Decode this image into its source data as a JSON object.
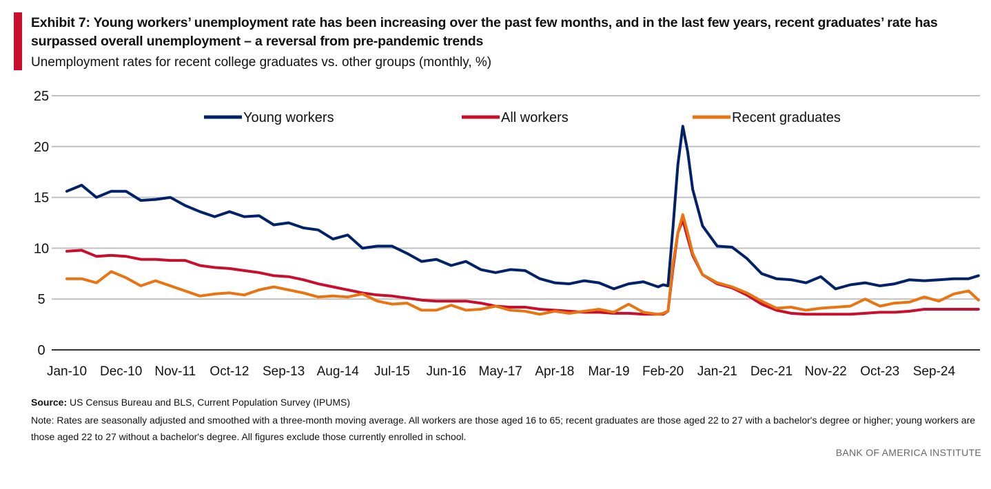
{
  "title": "Exhibit 7: Young workers’ unemployment rate has been increasing over the past few months, and in the last few years, recent graduates’ rate has surpassed overall unemployment – a reversal from pre-pandemic trends",
  "subtitle": "Unemployment rates for recent college graduates vs. other groups (monthly, %)",
  "source_label": "Source:",
  "source_text": " US Census Bureau and BLS, Current Population Survey (IPUMS)",
  "note": "Note: Rates are seasonally adjusted and smoothed with a three-month moving average. All workers are those aged 16 to 65; recent graduates are those aged 22 to 27 with a bachelor's degree or higher; young workers are those aged 22 to 27 without a bachelor's degree. All figures exclude those currently enrolled in school.",
  "brand": "BANK OF AMERICA INSTITUTE",
  "chart_data": {
    "type": "line",
    "ylim": [
      0,
      25
    ],
    "yticks": [
      0,
      5,
      10,
      15,
      20,
      25
    ],
    "grid": true,
    "legend": "top",
    "xticks": [
      "Jan-10",
      "Dec-10",
      "Nov-11",
      "Oct-12",
      "Sep-13",
      "Aug-14",
      "Jul-15",
      "Jun-16",
      "May-17",
      "Apr-18",
      "Mar-19",
      "Feb-20",
      "Jan-21",
      "Dec-21",
      "Nov-22",
      "Oct-23",
      "Sep-24"
    ],
    "x": [
      "Jan-10",
      "Apr-10",
      "Jul-10",
      "Oct-10",
      "Jan-11",
      "Apr-11",
      "Jul-11",
      "Oct-11",
      "Jan-12",
      "Apr-12",
      "Jul-12",
      "Oct-12",
      "Jan-13",
      "Apr-13",
      "Jul-13",
      "Oct-13",
      "Jan-14",
      "Apr-14",
      "Jul-14",
      "Oct-14",
      "Jan-15",
      "Apr-15",
      "Jul-15",
      "Oct-15",
      "Jan-16",
      "Apr-16",
      "Jul-16",
      "Oct-16",
      "Jan-17",
      "Apr-17",
      "Jul-17",
      "Oct-17",
      "Jan-18",
      "Apr-18",
      "Jul-18",
      "Oct-18",
      "Jan-19",
      "Apr-19",
      "Jul-19",
      "Oct-19",
      "Jan-20",
      "Feb-20",
      "Mar-20",
      "Apr-20",
      "May-20",
      "Jun-20",
      "Jul-20",
      "Aug-20",
      "Oct-20",
      "Jan-21",
      "Apr-21",
      "Jul-21",
      "Oct-21",
      "Jan-22",
      "Apr-22",
      "Jul-22",
      "Oct-22",
      "Jan-23",
      "Apr-23",
      "Jul-23",
      "Oct-23",
      "Jan-24",
      "Apr-24",
      "Jul-24",
      "Oct-24",
      "Jan-25",
      "Apr-25",
      "Jun-25"
    ],
    "series": [
      {
        "name": "Young workers",
        "color": "#012169",
        "values": [
          15.6,
          16.2,
          15.0,
          15.6,
          15.6,
          14.7,
          14.8,
          15.0,
          14.2,
          13.6,
          13.1,
          13.6,
          13.1,
          13.2,
          12.3,
          12.5,
          12.0,
          11.8,
          10.9,
          11.3,
          10.0,
          10.2,
          10.2,
          9.5,
          8.7,
          8.9,
          8.3,
          8.7,
          7.9,
          7.6,
          7.9,
          7.8,
          7.0,
          6.6,
          6.5,
          6.8,
          6.6,
          6.0,
          6.5,
          6.7,
          6.2,
          6.4,
          6.3,
          12.0,
          18.2,
          22.0,
          19.5,
          15.8,
          12.2,
          10.2,
          10.1,
          9.0,
          7.5,
          7.0,
          6.9,
          6.6,
          7.2,
          6.0,
          6.4,
          6.6,
          6.3,
          6.5,
          6.9,
          6.8,
          6.9,
          7.0,
          7.0,
          7.3
        ]
      },
      {
        "name": "All workers",
        "color": "#c8102e",
        "values": [
          9.7,
          9.8,
          9.2,
          9.3,
          9.2,
          8.9,
          8.9,
          8.8,
          8.8,
          8.3,
          8.1,
          8.0,
          7.8,
          7.6,
          7.3,
          7.2,
          6.9,
          6.5,
          6.2,
          5.9,
          5.6,
          5.4,
          5.3,
          5.1,
          4.9,
          4.8,
          4.8,
          4.8,
          4.6,
          4.3,
          4.2,
          4.2,
          4.0,
          3.9,
          3.8,
          3.7,
          3.7,
          3.6,
          3.6,
          3.5,
          3.5,
          3.5,
          3.8,
          8.0,
          11.5,
          12.8,
          11.0,
          9.3,
          7.4,
          6.5,
          6.1,
          5.4,
          4.5,
          3.9,
          3.6,
          3.5,
          3.5,
          3.5,
          3.5,
          3.6,
          3.7,
          3.7,
          3.8,
          4.0,
          4.0,
          4.0,
          4.0,
          4.0
        ]
      },
      {
        "name": "Recent graduates",
        "color": "#e87511",
        "values": [
          7.0,
          7.0,
          6.6,
          7.7,
          7.1,
          6.3,
          6.8,
          6.3,
          5.8,
          5.3,
          5.5,
          5.6,
          5.4,
          5.9,
          6.2,
          5.9,
          5.6,
          5.2,
          5.3,
          5.2,
          5.5,
          4.8,
          4.5,
          4.6,
          3.9,
          3.9,
          4.4,
          3.9,
          4.0,
          4.3,
          3.9,
          3.8,
          3.5,
          3.8,
          3.6,
          3.8,
          4.0,
          3.7,
          4.5,
          3.7,
          3.5,
          3.6,
          3.8,
          8.5,
          11.5,
          13.3,
          11.5,
          9.5,
          7.4,
          6.6,
          6.2,
          5.6,
          4.8,
          4.1,
          4.2,
          3.9,
          4.1,
          4.2,
          4.3,
          5.0,
          4.3,
          4.6,
          4.7,
          5.2,
          4.8,
          5.5,
          5.8,
          4.9
        ]
      }
    ]
  }
}
